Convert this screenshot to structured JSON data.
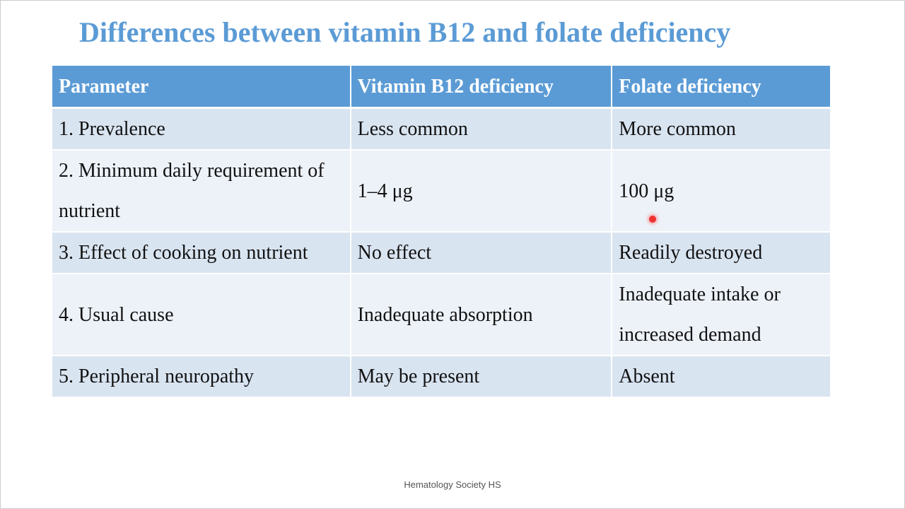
{
  "title": "Differences between vitamin B12 and folate deficiency",
  "table": {
    "header": [
      "Parameter",
      "Vitamin B12 deficiency",
      "Folate deficiency"
    ],
    "rows": [
      [
        "1. Prevalence",
        "Less common",
        "More common"
      ],
      [
        "2. Minimum daily requirement of nutrient",
        "1–4 μg",
        "100 μg"
      ],
      [
        "3. Effect of cooking on nutrient",
        "No effect",
        "Readily destroyed"
      ],
      [
        "4. Usual cause",
        "Inadequate absorption",
        "Inadequate intake or increased demand"
      ],
      [
        "5. Peripheral neuropathy",
        "May be present",
        "Absent"
      ]
    ]
  },
  "footer": "Hematology Society HS"
}
